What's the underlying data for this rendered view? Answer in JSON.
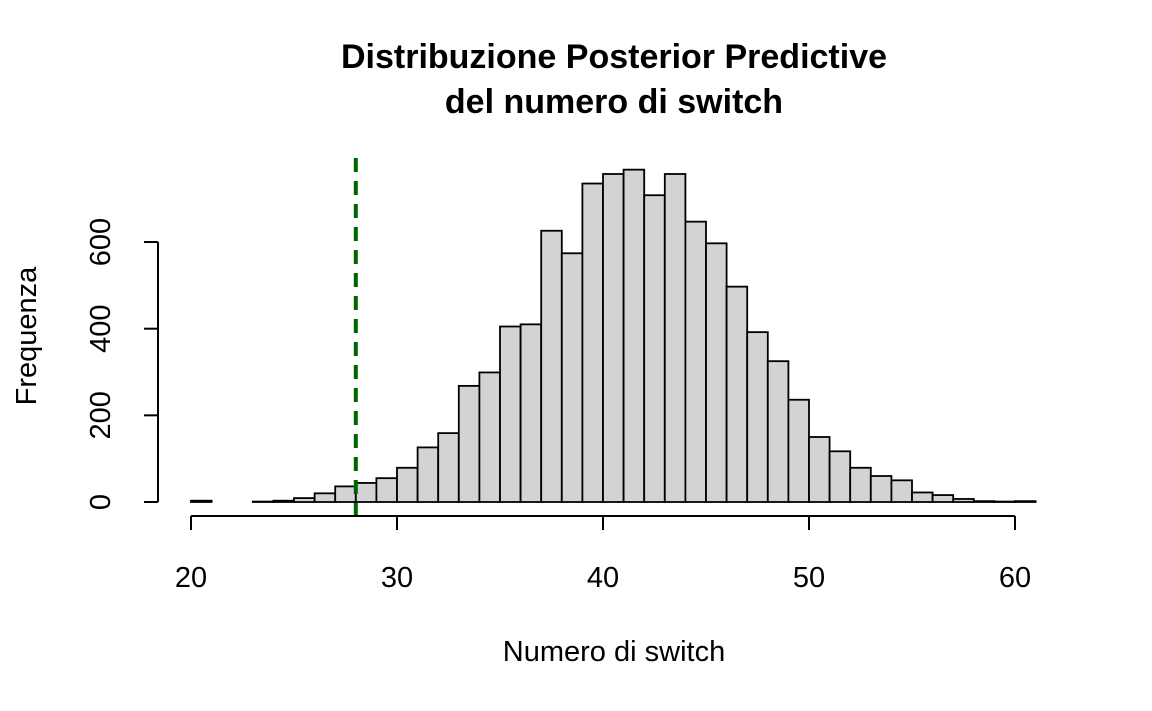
{
  "chart_data": {
    "type": "bar",
    "title_lines": [
      "Distribuzione Posterior Predictive",
      "del numero di switch"
    ],
    "xlabel": "Numero di switch",
    "ylabel": "Frequenza",
    "xlim": [
      20,
      61
    ],
    "ylim": [
      0,
      790
    ],
    "x_ticks": [
      20,
      30,
      40,
      50,
      60
    ],
    "y_ticks": [
      0,
      200,
      400,
      600
    ],
    "bin_width": 1,
    "bin_starts": [
      20,
      21,
      22,
      23,
      24,
      25,
      26,
      27,
      28,
      29,
      30,
      31,
      32,
      33,
      34,
      35,
      36,
      37,
      38,
      39,
      40,
      41,
      42,
      43,
      44,
      45,
      46,
      47,
      48,
      49,
      50,
      51,
      52,
      53,
      54,
      55,
      56,
      57,
      58,
      59,
      60
    ],
    "values": [
      3,
      0,
      0,
      1,
      3,
      9,
      20,
      36,
      44,
      55,
      79,
      126,
      159,
      268,
      299,
      405,
      410,
      626,
      574,
      735,
      757,
      767,
      708,
      757,
      647,
      597,
      497,
      392,
      325,
      236,
      150,
      117,
      79,
      60,
      50,
      22,
      16,
      7,
      2,
      1,
      2
    ],
    "reference_line": {
      "x": 28,
      "color": "#006400",
      "style": "dashed"
    },
    "bar_fill": "#d3d3d3",
    "grid": false
  }
}
